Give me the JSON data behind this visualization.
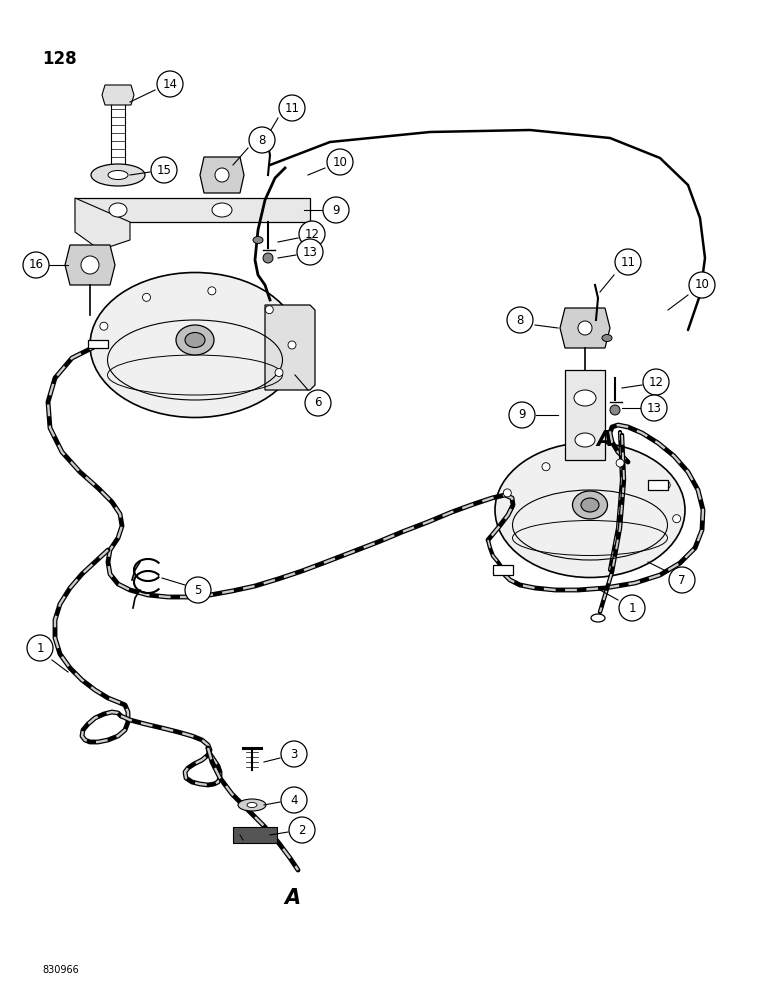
{
  "page_number": "128",
  "figure_number": "830966",
  "background_color": "#ffffff",
  "label_fontsize": 8.5,
  "page_num_fontsize": 12,
  "fig_num_fontsize": 7
}
